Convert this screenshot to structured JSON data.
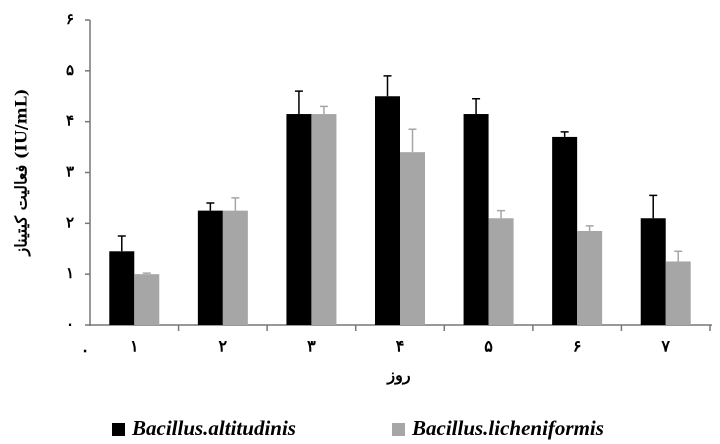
{
  "chart_data": {
    "type": "bar",
    "y_axis_label": "فعالیت کیتیناز (IU/mL)",
    "x_axis_label": "روز",
    "x_origin_label": "۰",
    "categories": [
      "۱",
      "۲",
      "۳",
      "۴",
      "۵",
      "۶",
      "۷"
    ],
    "series": [
      {
        "name": "Bacillus.altitudinis",
        "color": "#000000",
        "values": [
          1.45,
          2.25,
          4.15,
          4.5,
          4.15,
          3.7,
          2.1
        ],
        "errors": [
          0.3,
          0.15,
          0.45,
          0.4,
          0.3,
          0.1,
          0.45
        ]
      },
      {
        "name": "Bacillus.licheniformis",
        "color": "#a6a6a6",
        "values": [
          1.0,
          2.25,
          4.15,
          3.4,
          2.1,
          1.85,
          1.25
        ],
        "errors": [
          0.02,
          0.25,
          0.15,
          0.45,
          0.15,
          0.1,
          0.2
        ]
      }
    ],
    "ylim": [
      0,
      6
    ],
    "yticks": [
      {
        "value": 0,
        "label": "۰"
      },
      {
        "value": 1,
        "label": "۱"
      },
      {
        "value": 2,
        "label": "۲"
      },
      {
        "value": 3,
        "label": "۳"
      },
      {
        "value": 4,
        "label": "۴"
      },
      {
        "value": 5,
        "label": "۵"
      },
      {
        "value": 6,
        "label": "۶"
      }
    ],
    "grid": false,
    "legend": "bottom"
  }
}
